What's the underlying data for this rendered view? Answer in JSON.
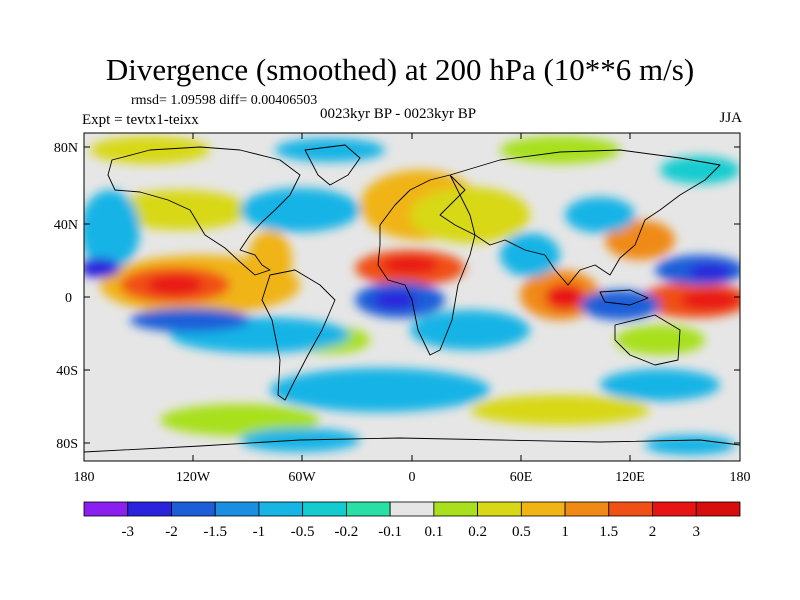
{
  "title": "Divergence (smoothed) at 200 hPa (10**6 m/s)",
  "stats": {
    "rmsd_label": "rmsd= 1.09598  diff= 0.00406503"
  },
  "experiment": {
    "label": "Expt = tevtx1-teixx"
  },
  "period": {
    "label": "0023kyr BP - 0023kyr BP"
  },
  "season": {
    "label": "JJA"
  },
  "axes": {
    "lat_ticks": [
      "80N",
      "40N",
      "0",
      "40S",
      "80S"
    ],
    "lon_ticks": [
      "180",
      "120W",
      "60W",
      "0",
      "60E",
      "120E",
      "180"
    ]
  },
  "colorbar": {
    "labels": [
      "-3",
      "-2",
      "-1.5",
      "-1",
      "-0.5",
      "-0.2",
      "-0.1",
      "0.1",
      "0.2",
      "0.5",
      "1",
      "1.5",
      "2",
      "3"
    ],
    "colors": [
      "#8a1ff0",
      "#2a22dc",
      "#1b5ed8",
      "#1a8ee0",
      "#17b4e6",
      "#14ccd0",
      "#28e0a6",
      "#e6e6e6",
      "#a8e01e",
      "#d8d818",
      "#f0b414",
      "#f08a14",
      "#f05014",
      "#e81414",
      "#d80e0e"
    ]
  }
}
